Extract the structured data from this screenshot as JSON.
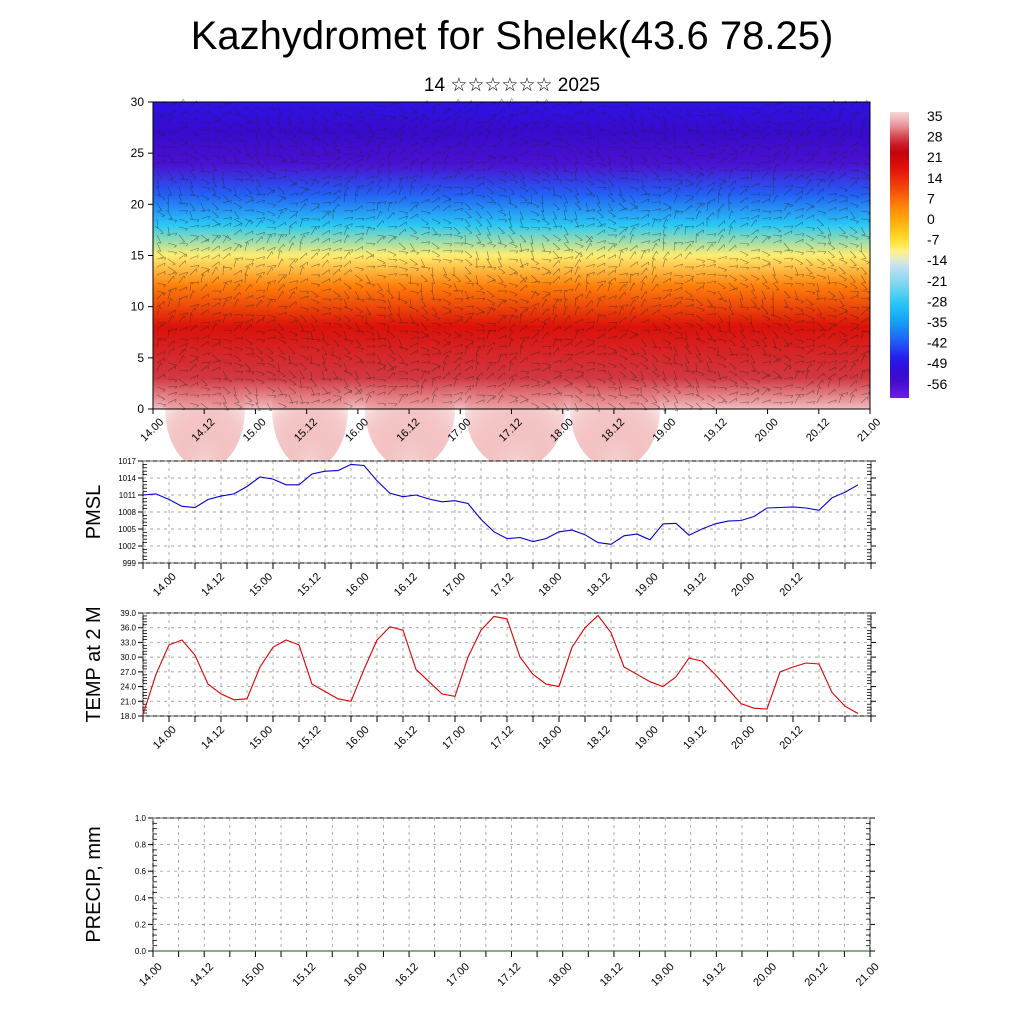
{
  "title": "Kazhydromet for Shelek(43.6 78.25)",
  "subtitle": "14 ☆☆☆☆☆☆ 2025",
  "x_tick_labels": [
    "14.00",
    "14.12",
    "15.00",
    "15.12",
    "16.00",
    "16.12",
    "17.00",
    "17.12",
    "18.00",
    "18.12",
    "19.00",
    "19.12",
    "20.00",
    "20.12",
    "21.00"
  ],
  "colors": {
    "pmsl_line": "#0000cc",
    "temp_line": "#dd0000",
    "precip_line": "#006600"
  },
  "chart_data": [
    {
      "type": "heatmap",
      "panel": "vertical-section",
      "xlabel": "",
      "ylabel": "",
      "ylim": [
        0,
        30
      ],
      "y_ticks": [
        0,
        5,
        10,
        15,
        20,
        25,
        30
      ],
      "colorbar_labels": [
        "35",
        "28",
        "21",
        "14",
        "7",
        "0",
        "-7",
        "-14",
        "-21",
        "-28",
        "-35",
        "-42",
        "-49",
        "-56"
      ],
      "colorbar_range": [
        -63,
        42
      ],
      "layer_profile": [
        {
          "level": 0,
          "value": 40
        },
        {
          "level": 3,
          "value": 32
        },
        {
          "level": 8,
          "value": 22
        },
        {
          "level": 12,
          "value": 8
        },
        {
          "level": 15,
          "value": -8
        },
        {
          "level": 18,
          "value": -28
        },
        {
          "level": 21,
          "value": -42
        },
        {
          "level": 24,
          "value": -58
        },
        {
          "level": 27,
          "value": -55
        },
        {
          "level": 30,
          "value": -50
        }
      ],
      "grid": false
    },
    {
      "type": "line",
      "panel": "pmsl",
      "ylabel": "PMSL",
      "ylim": [
        999,
        1017
      ],
      "y_ticks": [
        999,
        1002,
        1005,
        1008,
        1011,
        1014,
        1017
      ],
      "x": [
        0,
        3,
        6,
        9,
        12,
        15,
        18,
        21,
        24,
        27,
        30,
        33,
        36,
        39,
        42,
        45,
        48,
        51,
        54,
        57,
        60,
        63,
        66,
        69,
        72,
        75,
        78,
        81,
        84,
        87,
        90,
        93,
        96,
        99,
        102,
        105,
        108,
        111,
        114,
        117,
        120,
        123,
        126,
        129,
        132,
        135,
        138,
        141,
        144,
        147,
        150,
        153,
        156,
        159,
        162,
        165
      ],
      "values": [
        1011,
        1011.2,
        1010.2,
        1009,
        1008.8,
        1010.2,
        1010.8,
        1011.2,
        1012.5,
        1014.2,
        1013.8,
        1012.8,
        1012.8,
        1014.7,
        1015.2,
        1015.3,
        1016.4,
        1016.2,
        1013.5,
        1011.3,
        1010.7,
        1011,
        1010.3,
        1009.8,
        1010,
        1009.5,
        1006.7,
        1004.5,
        1003.3,
        1003.5,
        1002.8,
        1003.3,
        1004.5,
        1004.8,
        1004,
        1002.6,
        1002.3,
        1003.8,
        1004.1,
        1003.1,
        1005.9,
        1006,
        1003.9,
        1005,
        1005.9,
        1006.4,
        1006.5,
        1007.2,
        1008.7,
        1008.8,
        1008.9,
        1008.7,
        1008.3,
        1010.5,
        1011.5,
        1012.8
      ],
      "grid": true
    },
    {
      "type": "line",
      "panel": "temp",
      "ylabel": "TEMP at 2 M",
      "ylim": [
        18,
        39
      ],
      "y_ticks": [
        "18.0",
        "21.0",
        "24.0",
        "27.0",
        "30.0",
        "33.0",
        "36.0",
        "39.0"
      ],
      "x": [
        0,
        3,
        6,
        9,
        12,
        15,
        18,
        21,
        24,
        27,
        30,
        33,
        36,
        39,
        42,
        45,
        48,
        51,
        54,
        57,
        60,
        63,
        66,
        69,
        72,
        75,
        78,
        81,
        84,
        87,
        90,
        93,
        96,
        99,
        102,
        105,
        108,
        111,
        114,
        117,
        120,
        123,
        126,
        129,
        132,
        135,
        138,
        141,
        144,
        147,
        150,
        153,
        156,
        159,
        162,
        165
      ],
      "values": [
        18.3,
        26.5,
        32.5,
        33.5,
        30.4,
        24.5,
        22.5,
        21.3,
        21.5,
        28,
        32,
        33.5,
        32.5,
        24.5,
        23,
        21.5,
        21,
        27.5,
        33.5,
        36.2,
        35.5,
        27.5,
        25,
        22.5,
        22,
        30,
        35.5,
        38.3,
        37.8,
        30,
        26.5,
        24.5,
        24,
        32,
        36,
        38.5,
        35,
        28,
        26.5,
        25,
        24,
        26,
        29.8,
        29.2,
        26.5,
        23.5,
        20.5,
        19.6,
        19.4,
        27,
        28,
        28.8,
        28.6,
        22.8,
        20,
        18.5
      ],
      "grid": true
    },
    {
      "type": "line",
      "panel": "precip",
      "ylabel": "PRECIP, mm",
      "ylim": [
        0,
        1
      ],
      "y_ticks": [
        "0.0",
        "0.2",
        "0.4",
        "0.6",
        "0.8",
        "1.0"
      ],
      "x": [
        0,
        168
      ],
      "values": [
        0,
        0
      ],
      "grid": true
    }
  ]
}
